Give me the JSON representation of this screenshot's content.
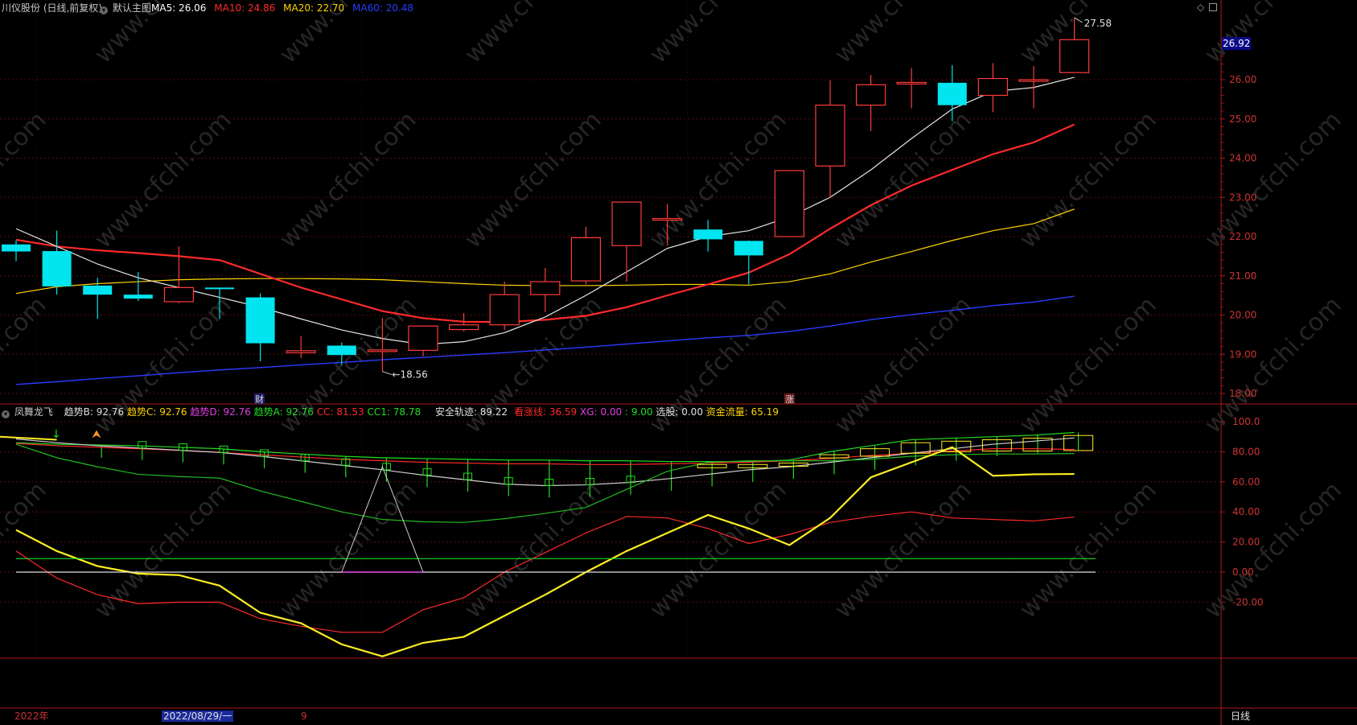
{
  "header": {
    "stock": "川仪股份 (日线,前复权)",
    "main_chart_label": "默认主图",
    "ma": [
      {
        "label": "MA5: 26.06",
        "color": "#ffffff"
      },
      {
        "label": "MA10: 24.86",
        "color": "#ff2a2a"
      },
      {
        "label": "MA20: 22.70",
        "color": "#ffd400"
      },
      {
        "label": "MA60: 20.48",
        "color": "#2a3cff"
      }
    ]
  },
  "indicator": {
    "name": "凤舞龙飞",
    "items": [
      {
        "label": "趋势B: 92.76",
        "color": "#e0e0e0"
      },
      {
        "label": "趋势C: 92.76",
        "color": "#ffd400"
      },
      {
        "label": "趋势D: 92.76",
        "color": "#e040e0"
      },
      {
        "label": "趋势A: 92.76",
        "color": "#22dd22"
      },
      {
        "label": "CC: 81.53",
        "color": "#ff2a2a"
      },
      {
        "label": "CC1: 78.78",
        "color": "#22dd22"
      },
      {
        "label": "安全轨迹: 89.22",
        "color": "#e0e0e0"
      },
      {
        "label": "看涨线: 36.59",
        "color": "#ff2a2a"
      },
      {
        "label": "XG: 0.00",
        "color": "#e040e0"
      },
      {
        "label": ": 9.00",
        "color": "#22dd22"
      },
      {
        "label": "选股: 0.00",
        "color": "#e0e0e0"
      },
      {
        "label": "资金流量: 65.19",
        "color": "#ffd400"
      }
    ]
  },
  "price_axis": [
    "26.00",
    "25.00",
    "24.00",
    "23.00",
    "22.00",
    "21.00",
    "20.00",
    "19.00",
    "18.00"
  ],
  "current_price": "26.92",
  "ind_axis": [
    "100.0",
    "80.00",
    "60.00",
    "40.00",
    "20.00",
    "0.00",
    "-20.00"
  ],
  "annotations": {
    "high": "27.58",
    "low": "18.56",
    "cai": "财",
    "zhang": "涨"
  },
  "bottom": {
    "year": "2022年",
    "date": "2022/08/29/一",
    "month": "9",
    "period": "日线"
  },
  "watermark": "www.cfchi.com",
  "candles": [
    {
      "o": 21.8,
      "c": 21.62,
      "h": 21.9,
      "l": 21.37
    },
    {
      "o": 21.63,
      "c": 20.73,
      "h": 22.15,
      "l": 20.52
    },
    {
      "o": 20.75,
      "c": 20.52,
      "h": 20.95,
      "l": 19.9
    },
    {
      "o": 20.52,
      "c": 20.42,
      "h": 21.1,
      "l": 20.36
    },
    {
      "o": 20.34,
      "c": 20.7,
      "h": 21.75,
      "l": 20.3
    },
    {
      "o": 20.7,
      "c": 20.68,
      "h": 20.68,
      "l": 19.9
    },
    {
      "o": 20.45,
      "c": 19.28,
      "h": 20.55,
      "l": 18.82
    },
    {
      "o": 19.04,
      "c": 19.09,
      "h": 19.47,
      "l": 18.9
    },
    {
      "o": 19.22,
      "c": 18.98,
      "h": 19.3,
      "l": 18.72
    },
    {
      "o": 19.08,
      "c": 19.11,
      "h": 19.92,
      "l": 18.56
    },
    {
      "o": 19.1,
      "c": 19.72,
      "h": 19.72,
      "l": 18.95
    },
    {
      "o": 19.63,
      "c": 19.75,
      "h": 20.05,
      "l": 19.58
    },
    {
      "o": 19.75,
      "c": 20.52,
      "h": 20.85,
      "l": 19.62
    },
    {
      "o": 20.52,
      "c": 20.85,
      "h": 21.2,
      "l": 20.08
    },
    {
      "o": 20.87,
      "c": 21.97,
      "h": 22.25,
      "l": 20.78
    },
    {
      "o": 21.77,
      "c": 22.88,
      "h": 22.88,
      "l": 20.85
    },
    {
      "o": 22.46,
      "c": 22.46,
      "h": 22.83,
      "l": 21.77
    },
    {
      "o": 22.18,
      "c": 21.93,
      "h": 22.42,
      "l": 21.62
    },
    {
      "o": 21.89,
      "c": 21.52,
      "h": 21.9,
      "l": 20.78
    },
    {
      "o": 22.0,
      "c": 23.68,
      "h": 23.68,
      "l": 22.0
    },
    {
      "o": 23.8,
      "c": 25.35,
      "h": 25.98,
      "l": 22.98
    },
    {
      "o": 25.35,
      "c": 25.87,
      "h": 26.12,
      "l": 24.69
    },
    {
      "o": 25.93,
      "c": 25.93,
      "h": 26.3,
      "l": 25.27
    },
    {
      "o": 25.92,
      "c": 25.35,
      "h": 26.37,
      "l": 24.94
    },
    {
      "o": 25.6,
      "c": 26.03,
      "h": 26.42,
      "l": 25.17
    },
    {
      "o": 26.0,
      "c": 26.0,
      "h": 26.35,
      "l": 25.27
    },
    {
      "o": 26.18,
      "c": 27.02,
      "h": 27.58,
      "l": 26.18
    }
  ],
  "ma_series": {
    "ma5": [
      22.2,
      21.75,
      21.3,
      20.95,
      20.7,
      20.45,
      20.2,
      19.9,
      19.62,
      19.4,
      19.25,
      19.32,
      19.55,
      19.95,
      20.5,
      21.1,
      21.7,
      22.0,
      22.15,
      22.5,
      23.0,
      23.7,
      24.5,
      25.25,
      25.7,
      25.8,
      26.06
    ],
    "ma10": [
      21.92,
      21.75,
      21.65,
      21.58,
      21.5,
      21.4,
      21.05,
      20.7,
      20.4,
      20.1,
      19.92,
      19.83,
      19.82,
      19.88,
      19.98,
      20.2,
      20.5,
      20.78,
      21.08,
      21.55,
      22.2,
      22.8,
      23.3,
      23.7,
      24.1,
      24.4,
      24.86
    ],
    "ma20": [
      20.55,
      20.72,
      20.8,
      20.85,
      20.9,
      20.92,
      20.93,
      20.93,
      20.92,
      20.9,
      20.85,
      20.8,
      20.76,
      20.75,
      20.75,
      20.76,
      20.78,
      20.78,
      20.76,
      20.85,
      21.05,
      21.35,
      21.62,
      21.9,
      22.15,
      22.33,
      22.7
    ],
    "ma60": [
      18.23,
      18.3,
      18.38,
      18.45,
      18.53,
      18.6,
      18.66,
      18.73,
      18.79,
      18.86,
      18.92,
      18.98,
      19.04,
      19.11,
      19.18,
      19.26,
      19.34,
      19.42,
      19.48,
      19.58,
      19.72,
      19.88,
      20.01,
      20.12,
      20.24,
      20.33,
      20.48
    ]
  },
  "ind_series": {
    "white_upper": [
      88.5,
      86.0,
      84.0,
      82.5,
      81.0,
      79.5,
      77.0,
      74.0,
      71.0,
      68.0,
      64.5,
      61.5,
      58.5,
      57.5,
      58.0,
      59.5,
      62.0,
      65.0,
      68.0,
      70.0,
      73.0,
      76.0,
      79.0,
      82.0,
      85.0,
      87.0,
      89.2
    ],
    "red_upper": [
      85.5,
      84.0,
      83.0,
      82.0,
      81.0,
      79.5,
      78.0,
      76.5,
      75.0,
      74.0,
      73.0,
      72.5,
      72.0,
      72.0,
      71.5,
      71.5,
      72.0,
      72.5,
      73.0,
      74.0,
      75.5,
      77.5,
      79.0,
      80.5,
      82.0,
      82.0,
      81.5
    ],
    "green_top": [
      86.0,
      85.0,
      84.5,
      84.0,
      83.0,
      82.0,
      80.0,
      78.5,
      77.0,
      76.0,
      75.5,
      75.0,
      74.5,
      74.5,
      74.0,
      74.0,
      73.5,
      73.5,
      73.5,
      74.5,
      80.0,
      84.0,
      88.0,
      89.0,
      90.0,
      91.0,
      92.8
    ],
    "green_mid": [
      85.0,
      76.0,
      70.0,
      65.0,
      63.5,
      62.5,
      54.0,
      47.0,
      40.0,
      35.0,
      33.5,
      33.0,
      35.5,
      39.0,
      43.0,
      55.0,
      67.0,
      73.0,
      74.0,
      74.0,
      74.0,
      75.0,
      77.0,
      78.0,
      78.5,
      78.5,
      78.8
    ],
    "red_low": [
      14.0,
      -4.0,
      -15.0,
      -21.0,
      -20.0,
      -20.0,
      -31.0,
      -36.0,
      -40.0,
      -40.0,
      -25.0,
      -17.0,
      0.0,
      13.0,
      26.0,
      37.0,
      36.0,
      29.0,
      19.0,
      25.0,
      33.0,
      37.0,
      40.0,
      36.0,
      35.0,
      34.0,
      36.6
    ],
    "yellow_low": [
      28.0,
      14.0,
      4.0,
      -1.0,
      -2.0,
      -9.0,
      -27.0,
      -34.0,
      -48.0,
      -56.0,
      -47.0,
      -43.0,
      -29.0,
      -15.0,
      0.0,
      14.0,
      26.0,
      38.0,
      29.0,
      18.0,
      36.0,
      63.0,
      73.0,
      83.0,
      64.0,
      65.0,
      65.2
    ]
  }
}
